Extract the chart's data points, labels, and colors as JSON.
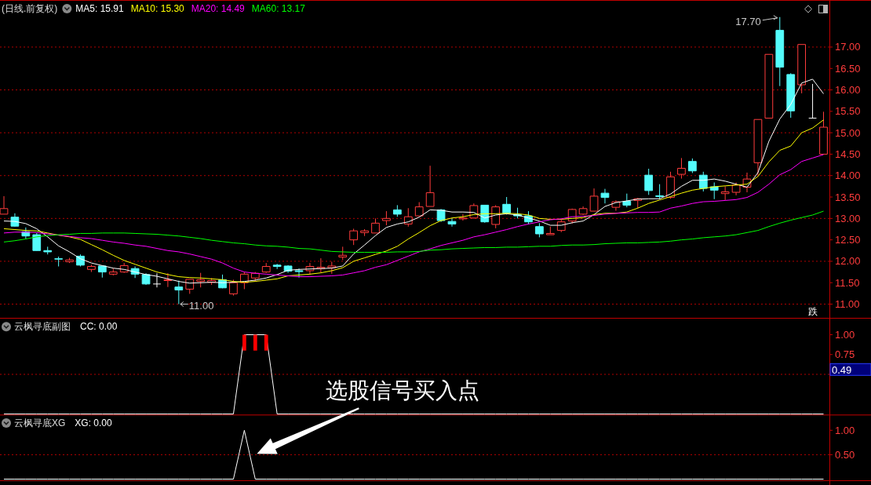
{
  "chart_data": [
    {
      "type": "candlestick",
      "title": "(日线.前复权)",
      "legend": "top left",
      "categories": [
        null,
        null,
        null,
        null,
        null,
        null,
        null,
        null,
        null,
        null,
        null,
        null,
        null,
        null,
        null,
        null,
        null,
        null,
        null,
        null,
        null,
        null,
        null,
        null,
        null,
        null,
        null,
        null,
        null,
        null,
        null,
        null,
        null,
        null,
        null,
        null,
        null,
        null,
        null,
        null,
        null,
        null,
        null,
        null,
        null,
        null,
        null,
        null,
        null,
        null,
        null,
        null,
        null,
        null,
        null,
        null,
        null,
        null,
        null,
        null,
        null,
        null,
        null,
        null,
        null,
        null,
        null,
        null,
        null,
        null,
        null,
        null,
        null,
        null,
        null,
        null
      ],
      "ohlc": [
        [
          13.1,
          13.52,
          13.1,
          13.23
        ],
        [
          13.03,
          13.12,
          12.81,
          12.82
        ],
        [
          12.69,
          12.79,
          12.53,
          12.59
        ],
        [
          12.62,
          12.66,
          12.25,
          12.25
        ],
        [
          12.25,
          12.34,
          12.16,
          12.22
        ],
        [
          12.06,
          12.11,
          11.88,
          12.05
        ],
        [
          11.99,
          12.08,
          11.96,
          12.03
        ],
        [
          12.12,
          12.16,
          11.88,
          11.91
        ],
        [
          11.81,
          11.92,
          11.75,
          11.88
        ],
        [
          11.89,
          11.9,
          11.62,
          11.75
        ],
        [
          11.7,
          11.83,
          11.67,
          11.75
        ],
        [
          11.75,
          11.96,
          11.73,
          11.9
        ],
        [
          11.83,
          11.88,
          11.61,
          11.7
        ],
        [
          11.69,
          11.72,
          11.45,
          11.47
        ],
        [
          11.47,
          11.72,
          11.39,
          11.47
        ],
        [
          11.55,
          11.72,
          11.4,
          11.57
        ],
        [
          11.4,
          11.55,
          11.0,
          11.33
        ],
        [
          11.35,
          11.58,
          11.24,
          11.58
        ],
        [
          11.53,
          11.73,
          11.39,
          11.57
        ],
        [
          11.51,
          11.61,
          11.45,
          11.55
        ],
        [
          11.57,
          11.69,
          11.37,
          11.38
        ],
        [
          11.24,
          11.57,
          11.2,
          11.5
        ],
        [
          11.5,
          11.75,
          11.35,
          11.7
        ],
        [
          11.61,
          11.75,
          11.53,
          11.72
        ],
        [
          11.75,
          11.96,
          11.73,
          11.88
        ],
        [
          11.91,
          11.94,
          11.82,
          11.88
        ],
        [
          11.89,
          11.91,
          11.73,
          11.77
        ],
        [
          11.78,
          11.83,
          11.62,
          11.76
        ],
        [
          11.78,
          11.96,
          11.69,
          11.88
        ],
        [
          11.83,
          12.07,
          11.74,
          11.86
        ],
        [
          11.85,
          11.99,
          11.71,
          11.89
        ],
        [
          12.1,
          12.34,
          12.03,
          12.14
        ],
        [
          12.5,
          12.76,
          12.38,
          12.71
        ],
        [
          12.67,
          12.75,
          12.59,
          12.71
        ],
        [
          12.66,
          13.0,
          12.66,
          12.89
        ],
        [
          12.95,
          13.17,
          12.84,
          13.0
        ],
        [
          13.2,
          13.31,
          13.04,
          13.1
        ],
        [
          12.87,
          13.24,
          12.81,
          13.04
        ],
        [
          13.06,
          13.38,
          13.06,
          13.27
        ],
        [
          13.28,
          14.23,
          13.28,
          13.6
        ],
        [
          13.2,
          13.22,
          12.92,
          12.95
        ],
        [
          12.93,
          13.0,
          12.81,
          12.87
        ],
        [
          12.99,
          13.1,
          12.95,
          13.01
        ],
        [
          13.01,
          13.35,
          13.0,
          13.3
        ],
        [
          13.31,
          13.31,
          12.9,
          12.92
        ],
        [
          12.86,
          13.31,
          12.77,
          13.27
        ],
        [
          13.33,
          13.5,
          13.09,
          13.12
        ],
        [
          13.09,
          13.25,
          13.0,
          13.06
        ],
        [
          13.06,
          13.17,
          12.86,
          12.92
        ],
        [
          12.81,
          12.89,
          12.56,
          12.64
        ],
        [
          12.62,
          12.81,
          12.62,
          12.65
        ],
        [
          12.72,
          12.97,
          12.68,
          12.92
        ],
        [
          12.94,
          13.23,
          12.88,
          13.21
        ],
        [
          13.1,
          13.28,
          13.08,
          13.23
        ],
        [
          13.17,
          13.7,
          13.17,
          13.52
        ],
        [
          13.59,
          13.69,
          13.35,
          13.49
        ],
        [
          13.26,
          13.42,
          13.18,
          13.39
        ],
        [
          13.4,
          13.58,
          13.26,
          13.31
        ],
        [
          13.42,
          13.48,
          13.24,
          13.46
        ],
        [
          14.01,
          14.16,
          13.55,
          13.65
        ],
        [
          13.53,
          13.8,
          13.45,
          13.51
        ],
        [
          13.49,
          14.09,
          13.46,
          13.97
        ],
        [
          14.03,
          14.41,
          13.93,
          14.17
        ],
        [
          14.33,
          14.4,
          14.06,
          14.11
        ],
        [
          14.01,
          14.09,
          13.63,
          13.7
        ],
        [
          13.74,
          13.84,
          13.45,
          13.66
        ],
        [
          13.58,
          13.75,
          13.43,
          13.62
        ],
        [
          13.61,
          13.84,
          13.54,
          13.78
        ],
        [
          13.73,
          14.07,
          13.61,
          13.92
        ],
        [
          14.3,
          15.31,
          14.01,
          15.31
        ],
        [
          15.34,
          16.83,
          15.34,
          16.83
        ],
        [
          17.39,
          17.7,
          16.09,
          16.53
        ],
        [
          16.36,
          16.39,
          15.35,
          15.51
        ],
        [
          16.12,
          17.06,
          15.92,
          17.06
        ],
        [
          15.34,
          16.14,
          15.34,
          15.34
        ],
        [
          14.5,
          15.49,
          14.5,
          15.13
        ]
      ],
      "series": [
        {
          "name": "MA5: 15.91",
          "type": "line",
          "color": "#ffffff",
          "values": [
            12.94,
            12.93,
            12.88,
            12.76,
            12.57,
            12.36,
            12.22,
            12.06,
            11.96,
            11.9,
            11.84,
            11.81,
            11.75,
            11.69,
            11.65,
            11.59,
            11.53,
            11.49,
            11.5,
            11.51,
            11.5,
            11.51,
            11.53,
            11.56,
            11.61,
            11.69,
            11.79,
            11.81,
            11.82,
            11.83,
            11.84,
            11.89,
            12.17,
            12.38,
            12.6,
            12.79,
            12.87,
            12.92,
            13.03,
            13.2,
            13.19,
            13.15,
            13.15,
            13.14,
            13.01,
            13.08,
            13.11,
            13.08,
            13.01,
            12.94,
            12.84,
            12.84,
            12.9,
            12.94,
            13.09,
            13.28,
            13.37,
            13.41,
            13.45,
            13.46,
            13.46,
            13.57,
            13.75,
            13.89,
            13.89,
            13.92,
            13.87,
            13.8,
            13.73,
            14.07,
            14.8,
            15.32,
            15.66,
            16.16,
            16.25,
            15.91
          ]
        },
        {
          "name": "MA10: 15.30",
          "type": "line",
          "color": "#ffff00",
          "values": [
            12.76,
            12.74,
            12.72,
            12.71,
            12.66,
            12.61,
            12.57,
            12.51,
            12.39,
            12.27,
            12.14,
            12.02,
            11.93,
            11.84,
            11.75,
            11.69,
            11.64,
            11.62,
            11.61,
            11.59,
            11.57,
            11.53,
            11.51,
            11.53,
            11.56,
            11.59,
            11.66,
            11.68,
            11.7,
            11.73,
            11.78,
            11.85,
            12.0,
            12.08,
            12.16,
            12.24,
            12.35,
            12.52,
            12.67,
            12.83,
            12.95,
            13.01,
            13.04,
            13.09,
            13.11,
            13.11,
            13.12,
            13.11,
            13.08,
            13.0,
            12.98,
            12.98,
            13.0,
            13.02,
            13.09,
            13.12,
            13.12,
            13.15,
            13.24,
            13.35,
            13.43,
            13.51,
            13.59,
            13.66,
            13.7,
            13.74,
            13.76,
            13.78,
            13.8,
            13.98,
            14.32,
            14.59,
            14.69,
            15.0,
            15.11,
            15.3
          ]
        },
        {
          "name": "MA20: 14.49",
          "type": "line",
          "color": "#ff00ff",
          "values": [
            12.66,
            12.68,
            12.68,
            12.67,
            12.64,
            12.61,
            12.58,
            12.55,
            12.53,
            12.49,
            12.45,
            12.42,
            12.38,
            12.35,
            12.3,
            12.25,
            12.22,
            12.17,
            12.11,
            12.05,
            11.96,
            11.84,
            11.75,
            11.72,
            11.7,
            11.68,
            11.66,
            11.64,
            11.64,
            11.65,
            11.66,
            11.68,
            11.73,
            11.78,
            11.86,
            11.92,
            12.02,
            12.12,
            12.22,
            12.29,
            12.37,
            12.43,
            12.49,
            12.57,
            12.62,
            12.68,
            12.74,
            12.81,
            12.87,
            12.92,
            12.97,
            12.99,
            13.04,
            13.05,
            13.07,
            13.1,
            13.12,
            13.13,
            13.14,
            13.14,
            13.15,
            13.24,
            13.29,
            13.35,
            13.39,
            13.4,
            13.42,
            13.44,
            13.49,
            13.61,
            13.8,
            14.02,
            14.14,
            14.33,
            14.41,
            14.49
          ]
        },
        {
          "name": "MA60: 13.17",
          "type": "line",
          "color": "#00ff00",
          "values": [
            12.45,
            12.48,
            12.52,
            12.57,
            12.6,
            12.62,
            12.63,
            12.65,
            12.65,
            12.66,
            12.66,
            12.66,
            12.65,
            12.64,
            12.63,
            12.61,
            12.59,
            12.56,
            12.53,
            12.49,
            12.46,
            12.43,
            12.41,
            12.38,
            12.36,
            12.35,
            12.33,
            12.3,
            12.29,
            12.26,
            12.23,
            12.22,
            12.21,
            12.21,
            12.21,
            12.21,
            12.22,
            12.22,
            12.23,
            12.26,
            12.27,
            12.29,
            12.3,
            12.31,
            12.32,
            12.32,
            12.33,
            12.33,
            12.34,
            12.35,
            12.35,
            12.37,
            12.38,
            12.38,
            12.39,
            12.41,
            12.42,
            12.43,
            12.43,
            12.44,
            12.45,
            12.47,
            12.5,
            12.52,
            12.55,
            12.57,
            12.59,
            12.62,
            12.67,
            12.72,
            12.81,
            12.89,
            12.96,
            13.02,
            13.08,
            13.17
          ]
        }
      ],
      "ylim": [
        10.68,
        18.08
      ],
      "yticks": [
        {
          "value": 11,
          "label": "11.00"
        },
        {
          "value": 11.5,
          "label": "11.50"
        },
        {
          "value": 12,
          "label": "12.00"
        },
        {
          "value": 12.5,
          "label": "12.50"
        },
        {
          "value": 13,
          "label": "13.00"
        },
        {
          "value": 13.5,
          "label": "13.50"
        },
        {
          "value": 14,
          "label": "14.00"
        },
        {
          "value": 14.5,
          "label": "14.50"
        },
        {
          "value": 15,
          "label": "15.00"
        },
        {
          "value": 15.5,
          "label": "15.50"
        },
        {
          "value": 16,
          "label": "16.00"
        },
        {
          "value": 16.5,
          "label": "16.50"
        },
        {
          "value": 17,
          "label": "17.00"
        }
      ],
      "grid": true,
      "annotations": [
        "17.70",
        "11.00",
        "跌"
      ]
    },
    {
      "type": "line",
      "title": "云枫寻底副图",
      "legend": "top left",
      "categories": [
        null,
        null,
        null,
        null,
        null,
        null,
        null,
        null,
        null,
        null,
        null,
        null,
        null,
        null,
        null,
        null,
        null,
        null,
        null,
        null,
        null,
        null,
        null,
        null,
        null,
        null,
        null,
        null,
        null,
        null,
        null,
        null,
        null,
        null,
        null,
        null,
        null,
        null,
        null,
        null,
        null,
        null,
        null,
        null,
        null,
        null,
        null,
        null,
        null,
        null,
        null,
        null,
        null,
        null,
        null,
        null,
        null,
        null,
        null,
        null,
        null,
        null,
        null,
        null,
        null,
        null,
        null,
        null,
        null,
        null,
        null,
        null,
        null,
        null,
        null,
        null
      ],
      "series": [
        {
          "name": "CC: 0.00",
          "color": "#ffffff",
          "values": [
            0,
            0,
            0,
            0,
            0,
            0,
            0,
            0,
            0,
            0,
            0,
            0,
            0,
            0,
            0,
            0,
            0,
            0,
            0,
            0,
            0,
            0,
            1,
            1,
            1,
            0,
            0,
            0,
            0,
            0,
            0,
            0,
            0,
            0,
            0,
            0,
            0,
            0,
            0,
            0,
            0,
            0,
            0,
            0,
            0,
            0,
            0,
            0,
            0,
            0,
            0,
            0,
            0,
            0,
            0,
            0,
            0,
            0,
            0,
            0,
            0,
            0,
            0,
            0,
            0,
            0,
            0,
            0,
            0,
            0,
            0,
            0,
            0,
            0,
            0,
            0
          ]
        },
        {
          "type": "bar",
          "color": "#ff0000",
          "values": [
            null,
            null,
            null,
            null,
            null,
            null,
            null,
            null,
            null,
            null,
            null,
            null,
            null,
            null,
            null,
            null,
            null,
            null,
            null,
            null,
            null,
            null,
            0.2,
            0.2,
            0.2,
            null,
            null,
            null,
            null,
            null,
            null,
            null,
            null,
            null,
            null,
            null,
            null,
            null,
            null,
            null,
            null,
            null,
            null,
            null,
            null,
            null,
            null,
            null,
            null,
            null,
            null,
            null,
            null,
            null,
            null,
            null,
            null,
            null,
            null,
            null,
            null,
            null,
            null,
            null,
            null,
            null,
            null,
            null,
            null,
            null,
            null,
            null,
            null,
            null,
            null,
            null
          ],
          "base": [
            null,
            null,
            null,
            null,
            null,
            null,
            null,
            null,
            null,
            null,
            null,
            null,
            null,
            null,
            null,
            null,
            null,
            null,
            null,
            null,
            null,
            null,
            0.8,
            0.8,
            0.8,
            null,
            null,
            null,
            null,
            null,
            null,
            null,
            null,
            null,
            null,
            null,
            null,
            null,
            null,
            null,
            null,
            null,
            null,
            null,
            null,
            null,
            null,
            null,
            null,
            null,
            null,
            null,
            null,
            null,
            null,
            null,
            null,
            null,
            null,
            null,
            null,
            null,
            null,
            null,
            null,
            null,
            null,
            null,
            null,
            null,
            null,
            null,
            null,
            null,
            null,
            null
          ]
        }
      ],
      "ylim": [
        0,
        1.2
      ],
      "yticks": [
        {
          "value": 0.5,
          "label": null
        },
        {
          "value": 0.75,
          "label": "0.75"
        },
        {
          "value": 1,
          "label": "1.00"
        }
      ],
      "ref_lines": [
        {
          "axis": "y",
          "value": 0.5,
          "color": "#b40000",
          "line_style": "dotted"
        }
      ],
      "annotations": [
        "0.49"
      ]
    },
    {
      "type": "line",
      "title": "云枫寻底XG",
      "legend": "top left",
      "categories": [
        null,
        null,
        null,
        null,
        null,
        null,
        null,
        null,
        null,
        null,
        null,
        null,
        null,
        null,
        null,
        null,
        null,
        null,
        null,
        null,
        null,
        null,
        null,
        null,
        null,
        null,
        null,
        null,
        null,
        null,
        null,
        null,
        null,
        null,
        null,
        null,
        null,
        null,
        null,
        null,
        null,
        null,
        null,
        null,
        null,
        null,
        null,
        null,
        null,
        null,
        null,
        null,
        null,
        null,
        null,
        null,
        null,
        null,
        null,
        null,
        null,
        null,
        null,
        null,
        null,
        null,
        null,
        null,
        null,
        null,
        null,
        null,
        null,
        null,
        null,
        null
      ],
      "series": [
        {
          "name": "XG: 0.00",
          "color": "#ffffff",
          "values": [
            0,
            0,
            0,
            0,
            0,
            0,
            0,
            0,
            0,
            0,
            0,
            0,
            0,
            0,
            0,
            0,
            0,
            0,
            0,
            0,
            0,
            0,
            1,
            0,
            0,
            0,
            0,
            0,
            0,
            0,
            0,
            0,
            0,
            0,
            0,
            0,
            0,
            0,
            0,
            0,
            0,
            0,
            0,
            0,
            0,
            0,
            0,
            0,
            0,
            0,
            0,
            0,
            0,
            0,
            0,
            0,
            0,
            0,
            0,
            0,
            0,
            0,
            0,
            0,
            0,
            0,
            0,
            0,
            0,
            0,
            0,
            0,
            0,
            0,
            0,
            0
          ]
        }
      ],
      "ylim": [
        0,
        1.31
      ],
      "yticks": [
        {
          "value": 0.5,
          "label": "0.50"
        },
        {
          "value": 1,
          "label": "1.00"
        }
      ],
      "ref_lines": [
        {
          "axis": "y",
          "value": 0.5,
          "color": "#b40000",
          "line_style": "dotted"
        }
      ],
      "annotations": [
        "选股信号买入点"
      ]
    }
  ]
}
